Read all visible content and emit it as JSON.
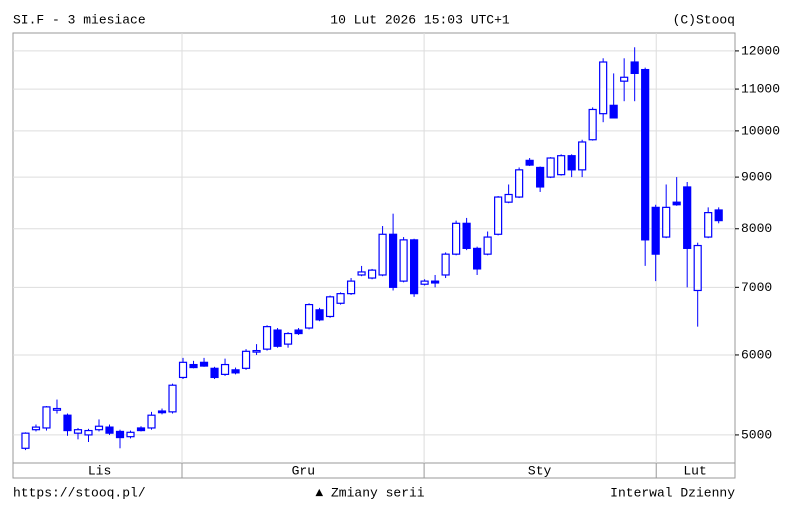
{
  "chart_data": {
    "type": "candlestick",
    "title": "SI.F - 3 miesiace",
    "subtitle": "10 Lut 2026 15:03 UTC+1",
    "source": "(C)Stooq",
    "footer_left": "https://stooq.pl/",
    "footer_center": "▲ Zmiany serii",
    "footer_right": "Interwal Dzienny",
    "log_scale": true,
    "grid": true,
    "up_color": "#ffffff",
    "down_color": "#0000ff",
    "edge_color": "#0000ff",
    "xlim": [
      -1.14,
      67.6
    ],
    "ylim": [
      4690,
      12500
    ],
    "yticks": [
      5000,
      6000,
      7000,
      8000,
      9000,
      10000,
      11000,
      12000
    ],
    "xticks": [
      {
        "value": 7.1,
        "label": "Lis"
      },
      {
        "value": 26.5,
        "label": "Gru"
      },
      {
        "value": 49.0,
        "label": "Sty"
      },
      {
        "value": 63.8,
        "label": "Lut"
      }
    ],
    "xgrid": [
      14.95,
      38,
      60.1
    ],
    "x": [
      0,
      1,
      2,
      3,
      4,
      5,
      6,
      7,
      8,
      9,
      10,
      11,
      12,
      13,
      14,
      15,
      16,
      17,
      18,
      19,
      20,
      21,
      22,
      23,
      24,
      25,
      26,
      27,
      28,
      29,
      30,
      31,
      32,
      33,
      34,
      35,
      36,
      37,
      38,
      39,
      40,
      41,
      42,
      43,
      44,
      45,
      46,
      47,
      48,
      49,
      50,
      51,
      52,
      53,
      54,
      55,
      56,
      57,
      58,
      59,
      60,
      61,
      62,
      63,
      64,
      65,
      66
    ],
    "open": [
      4850,
      5060,
      5080,
      5290,
      5230,
      5020,
      5000,
      5060,
      5090,
      5040,
      4980,
      5080,
      5080,
      5280,
      5270,
      5700,
      5870,
      5900,
      5820,
      5740,
      5800,
      5820,
      6040,
      6080,
      6350,
      6150,
      6350,
      6380,
      6650,
      6550,
      6750,
      6900,
      7200,
      7150,
      7200,
      7900,
      7100,
      7800,
      7050,
      7100,
      7200,
      7550,
      8100,
      7650,
      7550,
      7900,
      8500,
      8600,
      9350,
      9200,
      9000,
      9050,
      9450,
      9150,
      9800,
      10400,
      10600,
      11200,
      11700,
      11500,
      8400,
      7850,
      8500,
      8800,
      6950,
      7850,
      8350
    ],
    "high": [
      5030,
      5120,
      5340,
      5420,
      5250,
      5080,
      5070,
      5180,
      5120,
      5060,
      5050,
      5100,
      5270,
      5310,
      5620,
      5960,
      5920,
      5960,
      5840,
      5950,
      5830,
      6080,
      6150,
      6420,
      6380,
      6320,
      6380,
      6750,
      6680,
      6870,
      6920,
      7150,
      7350,
      7300,
      8050,
      8280,
      7850,
      7820,
      7130,
      7200,
      7580,
      8150,
      8200,
      7680,
      7950,
      8620,
      8850,
      9200,
      9400,
      9220,
      9420,
      9480,
      9480,
      9800,
      10550,
      11800,
      11400,
      11800,
      12100,
      11550,
      8450,
      8850,
      9000,
      8900,
      7750,
      8400,
      8400
    ],
    "low": [
      4830,
      5040,
      5050,
      5250,
      4990,
      4950,
      4920,
      5040,
      5000,
      4850,
      4960,
      5040,
      5060,
      5240,
      5250,
      5680,
      5820,
      5840,
      5680,
      5720,
      5740,
      5800,
      6000,
      6060,
      6100,
      6100,
      6280,
      6360,
      6480,
      6530,
      6730,
      6880,
      7180,
      7130,
      7180,
      6950,
      7080,
      6850,
      7030,
      7000,
      7150,
      7530,
      7620,
      7200,
      7530,
      7880,
      8480,
      8580,
      9230,
      8700,
      8980,
      9030,
      9000,
      9000,
      9780,
      10200,
      10300,
      10700,
      10700,
      7350,
      7100,
      7830,
      8430,
      7000,
      6400,
      7830,
      8100
    ],
    "close": [
      5020,
      5090,
      5330,
      5310,
      5050,
      5060,
      5050,
      5100,
      5020,
      4970,
      5030,
      5050,
      5230,
      5260,
      5600,
      5900,
      5830,
      5850,
      5700,
      5870,
      5760,
      6050,
      6060,
      6400,
      6120,
      6300,
      6300,
      6730,
      6500,
      6850,
      6900,
      7100,
      7250,
      7280,
      7900,
      7000,
      7800,
      6900,
      7100,
      7070,
      7550,
      8100,
      7650,
      7300,
      7850,
      8600,
      8650,
      9150,
      9250,
      8800,
      9400,
      9450,
      9150,
      9750,
      10500,
      11700,
      10300,
      11300,
      11400,
      7800,
      7550,
      8400,
      8450,
      7650,
      7700,
      8300,
      8150
    ]
  }
}
